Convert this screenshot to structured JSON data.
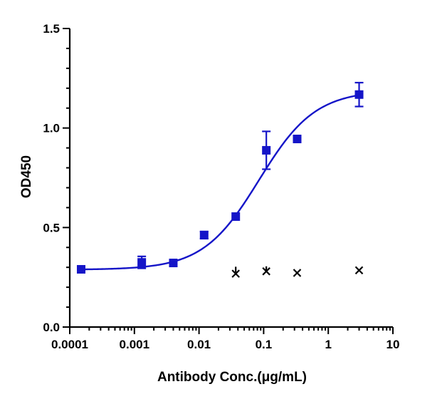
{
  "chart_data": {
    "type": "scatter",
    "title": "",
    "xlabel": "Antibody Conc.(μg/mL)",
    "ylabel": "OD450",
    "xscale": "log",
    "xlim": [
      0.0001,
      10
    ],
    "ylim": [
      0.0,
      1.5
    ],
    "x_tick_labels": [
      "0.0001",
      "0.001",
      "0.01",
      "0.1",
      "1",
      "10"
    ],
    "y_tick_labels": [
      "0.0",
      "0.5",
      "1.0",
      "1.5"
    ],
    "grid": false,
    "legend": "none",
    "colors": {
      "series": "#1515c8",
      "control": "#000000",
      "axes": "#000000"
    },
    "series": [
      {
        "marker": "square",
        "x": [
          0.00015,
          0.0013,
          0.004,
          0.012,
          0.037,
          0.11,
          0.33,
          3.0
        ],
        "y": [
          0.29,
          0.325,
          0.322,
          0.462,
          0.555,
          0.888,
          0.945,
          1.168
        ],
        "error": [
          0.0,
          0.03,
          0.0,
          0.018,
          0.0,
          0.095,
          0.0,
          0.06
        ]
      },
      {
        "marker": "cross",
        "x": [
          0.037,
          0.11,
          0.33,
          3.0
        ],
        "y": [
          0.268,
          0.28,
          0.272,
          0.285
        ],
        "error": [
          0.035,
          0.025,
          0.0,
          0.0
        ]
      }
    ],
    "fit": {
      "type": "4PL",
      "bottom": 0.288,
      "top": 1.19,
      "ec50": 0.085,
      "hill": 1.0,
      "x_range": [
        0.00015,
        3.0
      ]
    }
  }
}
